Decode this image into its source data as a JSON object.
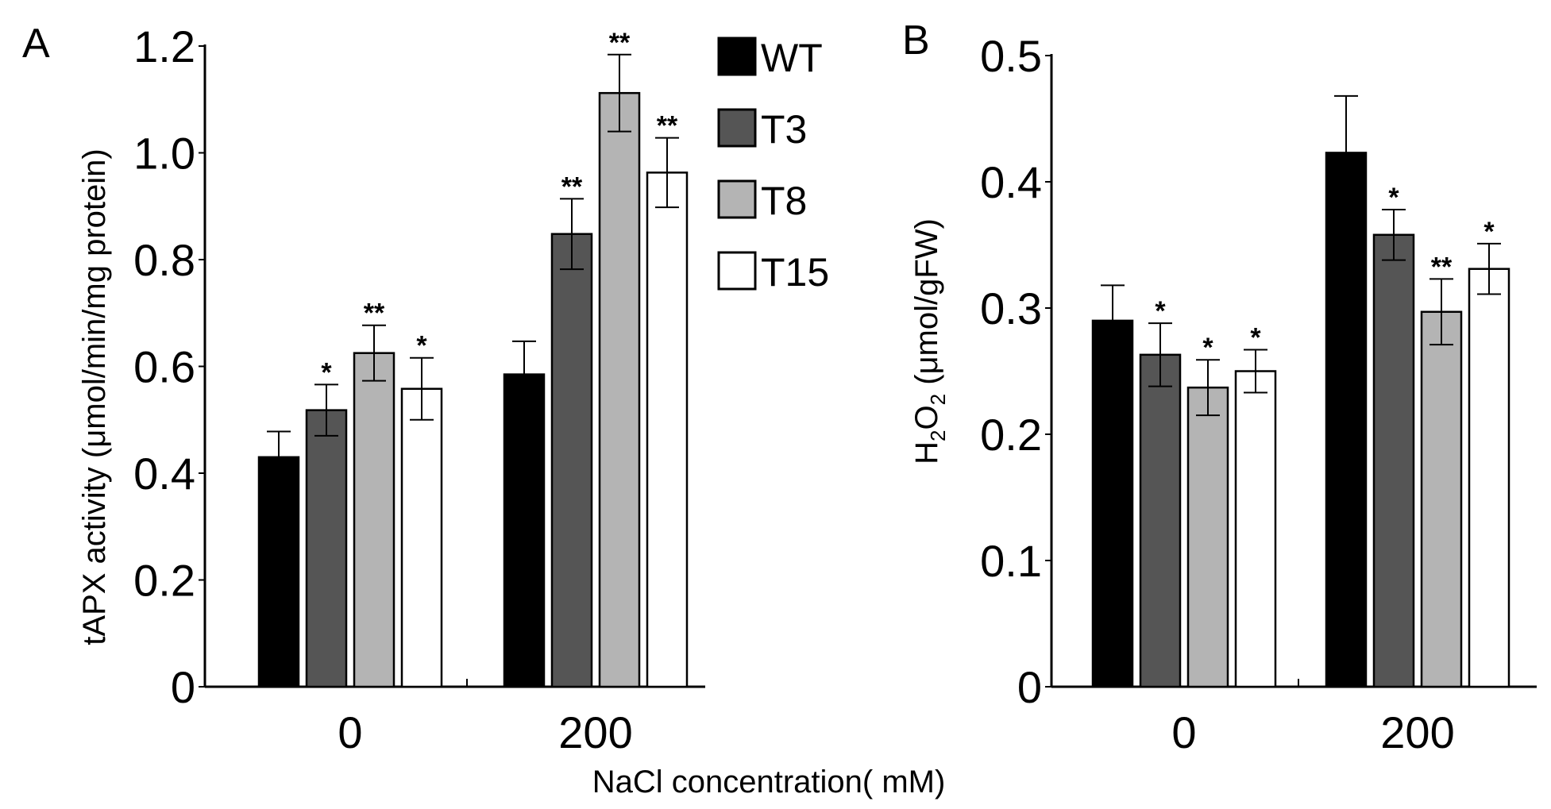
{
  "xlabel": "NaCl concentration( mM)",
  "legend": [
    {
      "name": "WT",
      "color": "#000000"
    },
    {
      "name": "T3",
      "color": "#555555"
    },
    {
      "name": "T8",
      "color": "#b4b4b4"
    },
    {
      "name": "T15",
      "color": "#ffffff"
    }
  ],
  "chart_data": [
    {
      "type": "bar",
      "panel": "A",
      "title": "",
      "ylabel": "tAPX activity (μmol/min/mg protein)",
      "categories": [
        "0",
        "200"
      ],
      "ylim": [
        0,
        1.2
      ],
      "yticks": [
        "0",
        "0.2",
        "0.4",
        "0.6",
        "0.8",
        "1.0",
        "1.2"
      ],
      "yticks_values": [
        0,
        0.2,
        0.4,
        0.6,
        0.8,
        1.0,
        1.2
      ],
      "series": [
        {
          "name": "WT",
          "values": [
            0.43,
            0.585
          ],
          "errors": [
            0.048,
            0.062
          ],
          "sig": [
            "",
            ""
          ]
        },
        {
          "name": "T3",
          "values": [
            0.518,
            0.848
          ],
          "errors": [
            0.048,
            0.066
          ],
          "sig": [
            "*",
            "**"
          ]
        },
        {
          "name": "T8",
          "values": [
            0.625,
            1.112
          ],
          "errors": [
            0.052,
            0.072
          ],
          "sig": [
            "**",
            "**"
          ]
        },
        {
          "name": "T15",
          "values": [
            0.558,
            0.963
          ],
          "errors": [
            0.058,
            0.065
          ],
          "sig": [
            "*",
            "**"
          ]
        }
      ]
    },
    {
      "type": "bar",
      "panel": "B",
      "title": "",
      "ylabel_main": "H",
      "ylabel_sub1": "2",
      "ylabel_mid": "O",
      "ylabel_sub2": "2",
      "ylabel_rest": " (μmol/gFW)",
      "categories": [
        "0",
        "200"
      ],
      "ylim": [
        0,
        0.5
      ],
      "yticks": [
        "0",
        "0.1",
        "0.2",
        "0.3",
        "0.4",
        "0.5"
      ],
      "yticks_values": [
        0,
        0.1,
        0.2,
        0.3,
        0.4,
        0.5
      ],
      "series": [
        {
          "name": "WT",
          "values": [
            0.29,
            0.423
          ],
          "errors": [
            0.028,
            0.045
          ],
          "sig": [
            "",
            ""
          ]
        },
        {
          "name": "T3",
          "values": [
            0.263,
            0.358
          ],
          "errors": [
            0.025,
            0.02
          ],
          "sig": [
            "*",
            "*"
          ]
        },
        {
          "name": "T8",
          "values": [
            0.237,
            0.297
          ],
          "errors": [
            0.022,
            0.026
          ],
          "sig": [
            "*",
            "**"
          ]
        },
        {
          "name": "T15",
          "values": [
            0.25,
            0.331
          ],
          "errors": [
            0.017,
            0.02
          ],
          "sig": [
            "*",
            "*"
          ]
        }
      ]
    }
  ]
}
